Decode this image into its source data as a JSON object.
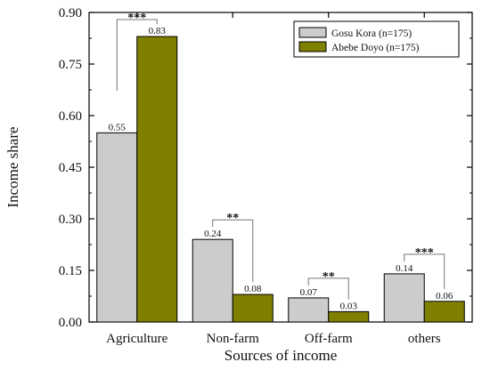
{
  "chart_data": {
    "type": "bar",
    "title": "",
    "xlabel": "Sources of income",
    "ylabel": "Income share",
    "ylim": [
      0,
      0.9
    ],
    "yticks": [
      "0.00",
      "0.15",
      "0.30",
      "0.45",
      "0.60",
      "0.75",
      "0.90"
    ],
    "categories": [
      "Agriculture",
      "Non-farm",
      "Off-farm",
      "others"
    ],
    "series": [
      {
        "name": "Gosu Kora (n=175)",
        "values": [
          0.55,
          0.24,
          0.07,
          0.14
        ],
        "labels": [
          "0.55",
          "0.24",
          "0.07",
          "0.14"
        ],
        "color": "#cccccc"
      },
      {
        "name": "Abebe Doyo (n=175)",
        "values": [
          0.83,
          0.08,
          0.03,
          0.06
        ],
        "labels": [
          "0.83",
          "0.08",
          "0.03",
          "0.06"
        ],
        "color": "#808000"
      }
    ],
    "significance": [
      "***",
      "**",
      "**",
      "***"
    ],
    "legend_position": "top-right",
    "grid": false
  }
}
